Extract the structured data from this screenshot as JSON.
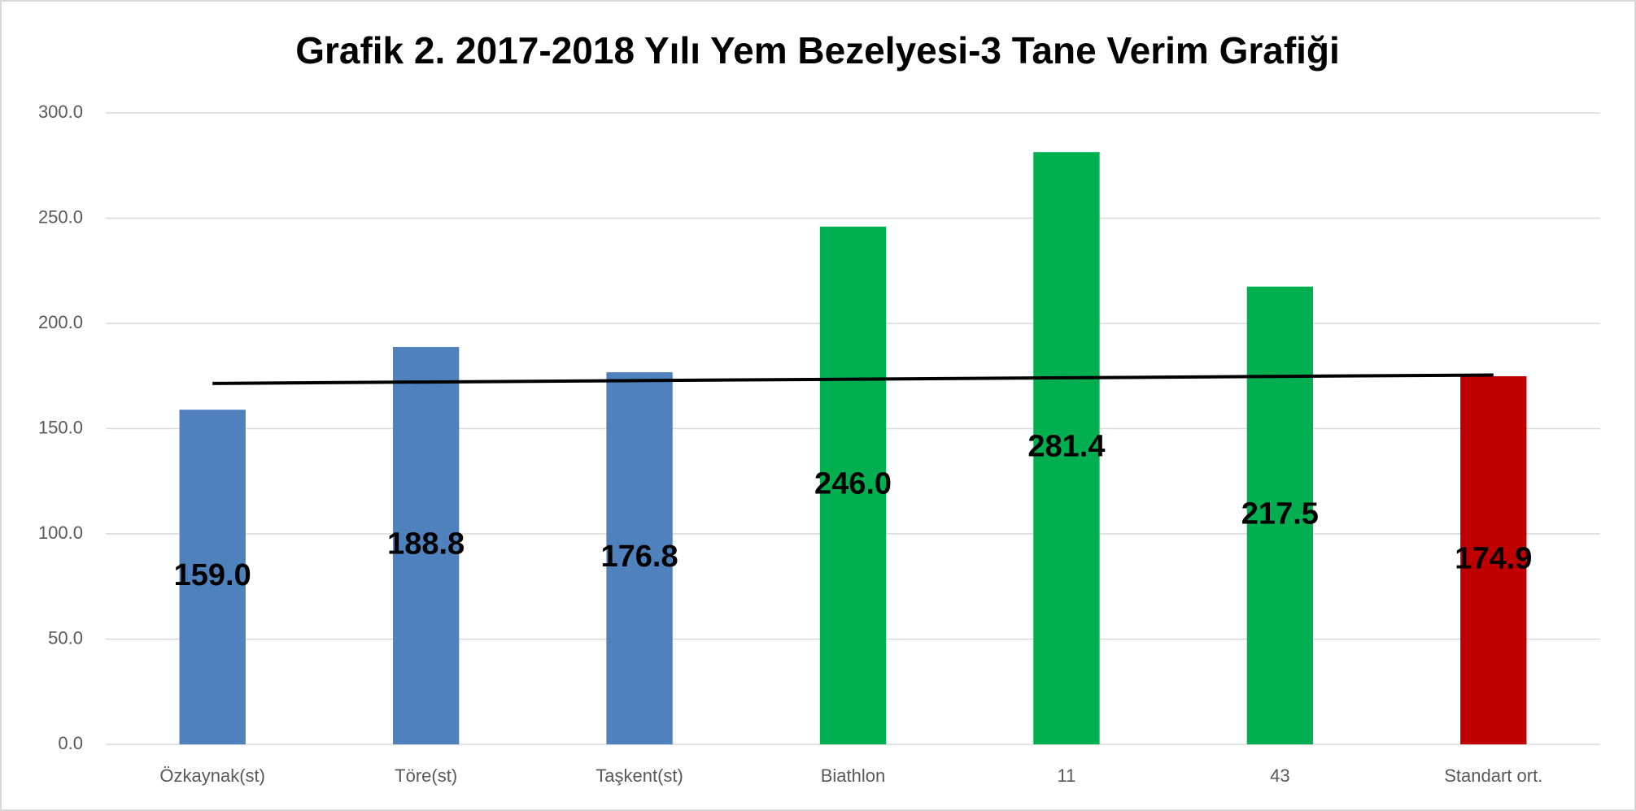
{
  "chart_data": {
    "type": "bar",
    "title": "Grafik 2. 2017-2018 Yılı Yem Bezelyesi-3 Tane Verim Grafiği",
    "categories": [
      "Özkaynak(st)",
      "Töre(st)",
      "Taşkent(st)",
      "Biathlon",
      "11",
      "43",
      "Standart ort."
    ],
    "values": [
      159.0,
      188.8,
      176.8,
      246.0,
      281.4,
      217.5,
      174.9
    ],
    "value_labels": [
      "159.0",
      "188.8",
      "176.8",
      "246.0",
      "281.4",
      "217.5",
      "174.9"
    ],
    "colors": [
      "#4f81bd",
      "#4f81bd",
      "#4f81bd",
      "#00b050",
      "#00b050",
      "#00b050",
      "#c00000"
    ],
    "ylim": [
      0,
      300
    ],
    "yticks": [
      {
        "value": 0,
        "label": "0.0"
      },
      {
        "value": 50,
        "label": "50.0"
      },
      {
        "value": 100,
        "label": "100.0"
      },
      {
        "value": 150,
        "label": "150.0"
      },
      {
        "value": 200,
        "label": "200.0"
      },
      {
        "value": 250,
        "label": "250.0"
      },
      {
        "value": 300,
        "label": "300.0"
      }
    ],
    "grid": true,
    "trendline": {
      "color": "#000000",
      "values": [
        171.5,
        175.5
      ]
    }
  }
}
